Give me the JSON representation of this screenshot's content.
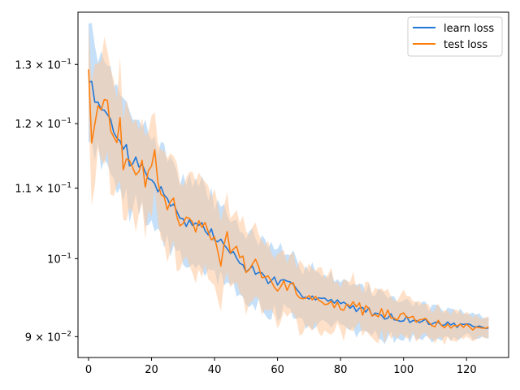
{
  "chart_data": {
    "type": "line",
    "title": "",
    "xlabel": "",
    "ylabel": "",
    "yscale": "log",
    "xlim": [
      -3.35,
      133.35
    ],
    "ylim": [
      0.0875,
      0.1395
    ],
    "grid": false,
    "legend_position": "top-right",
    "x_ticks": [
      0,
      20,
      40,
      60,
      80,
      100,
      120
    ],
    "x_tick_labels": [
      "0",
      "20",
      "40",
      "60",
      "80",
      "100",
      "120"
    ],
    "y_ticks": [
      0.09,
      0.1,
      0.11,
      0.12,
      0.13
    ],
    "y_tick_labels": [
      {
        "base": "9 × 10",
        "exp": "−2"
      },
      {
        "base": "10",
        "exp": "−1"
      },
      {
        "base": "1.1 × 10",
        "exp": "−1"
      },
      {
        "base": "1.2 × 10",
        "exp": "−1"
      },
      {
        "base": "1.3 × 10",
        "exp": "−1"
      }
    ],
    "colors": {
      "learn": "#1f77b4",
      "learn_line": "#1f77d8",
      "test": "#ff7f0e",
      "learn_band": "#a6d0f5",
      "test_band": "#ffc89c"
    },
    "series": [
      {
        "name": "learn loss",
        "x_start": 0,
        "x_step": 1,
        "knots": [
          [
            0,
            0.1275
          ],
          [
            1,
            0.1268
          ],
          [
            2,
            0.1245
          ],
          [
            4,
            0.1232
          ],
          [
            5,
            0.1212
          ],
          [
            6,
            0.1216
          ],
          [
            7,
            0.1205
          ],
          [
            8,
            0.118
          ],
          [
            10,
            0.1175
          ],
          [
            12,
            0.116
          ],
          [
            13,
            0.114
          ],
          [
            15,
            0.1148
          ],
          [
            18,
            0.1122
          ],
          [
            20,
            0.1115
          ],
          [
            22,
            0.1098
          ],
          [
            24,
            0.1092
          ],
          [
            26,
            0.1078
          ],
          [
            28,
            0.1072
          ],
          [
            30,
            0.1052
          ],
          [
            33,
            0.1048
          ],
          [
            36,
            0.1045
          ],
          [
            40,
            0.103
          ],
          [
            44,
            0.1015
          ],
          [
            47,
            0.0998
          ],
          [
            50,
            0.0988
          ],
          [
            53,
            0.0983
          ],
          [
            56,
            0.0975
          ],
          [
            60,
            0.0968
          ],
          [
            63,
            0.0965
          ],
          [
            66,
            0.0958
          ],
          [
            70,
            0.0952
          ],
          [
            75,
            0.0946
          ],
          [
            80,
            0.094
          ],
          [
            85,
            0.0936
          ],
          [
            90,
            0.093
          ],
          [
            95,
            0.0925
          ],
          [
            100,
            0.0922
          ],
          [
            105,
            0.0919
          ],
          [
            110,
            0.0917
          ],
          [
            115,
            0.0915
          ],
          [
            120,
            0.0913
          ],
          [
            127,
            0.0911
          ]
        ],
        "band_halfwidth_ratio": {
          "start": 0.06,
          "end": 0.012
        }
      },
      {
        "name": "test loss",
        "x_start": 0,
        "x_step": 1,
        "knots": [
          [
            0,
            0.13
          ],
          [
            1,
            0.1185
          ],
          [
            2,
            0.1215
          ],
          [
            4,
            0.123
          ],
          [
            6,
            0.1225
          ],
          [
            8,
            0.118
          ],
          [
            9,
            0.1165
          ],
          [
            10,
            0.1195
          ],
          [
            11,
            0.1138
          ],
          [
            13,
            0.114
          ],
          [
            15,
            0.1118
          ],
          [
            17,
            0.1148
          ],
          [
            18,
            0.1112
          ],
          [
            20,
            0.112
          ],
          [
            21,
            0.1145
          ],
          [
            22,
            0.11
          ],
          [
            25,
            0.108
          ],
          [
            27,
            0.1082
          ],
          [
            29,
            0.1045
          ],
          [
            31,
            0.1068
          ],
          [
            33,
            0.1042
          ],
          [
            36,
            0.105
          ],
          [
            40,
            0.103
          ],
          [
            42,
            0.1
          ],
          [
            44,
            0.1025
          ],
          [
            46,
            0.101
          ],
          [
            48,
            0.1
          ],
          [
            50,
            0.099
          ],
          [
            53,
            0.0988
          ],
          [
            55,
            0.097
          ],
          [
            57,
            0.098
          ],
          [
            60,
            0.0968
          ],
          [
            63,
            0.0965
          ],
          [
            66,
            0.096
          ],
          [
            70,
            0.095
          ],
          [
            75,
            0.0945
          ],
          [
            80,
            0.094
          ],
          [
            85,
            0.0935
          ],
          [
            90,
            0.093
          ],
          [
            95,
            0.0926
          ],
          [
            100,
            0.0923
          ],
          [
            105,
            0.0919
          ],
          [
            110,
            0.0916
          ],
          [
            115,
            0.0914
          ],
          [
            120,
            0.0912
          ],
          [
            127,
            0.091
          ]
        ],
        "band_halfwidth_ratio": {
          "start": 0.065,
          "end": 0.012
        }
      }
    ]
  }
}
